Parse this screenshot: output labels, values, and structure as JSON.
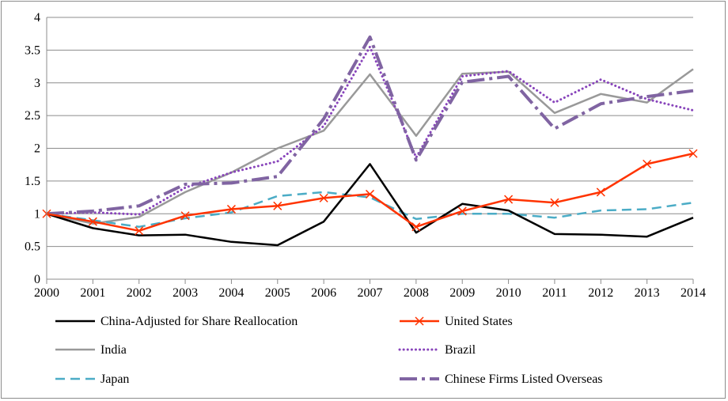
{
  "chart_data": {
    "type": "line",
    "title": "",
    "xlabel": "",
    "ylabel": "",
    "x": [
      "2000",
      "2001",
      "2002",
      "2003",
      "2004",
      "2005",
      "2006",
      "2007",
      "2008",
      "2009",
      "2010",
      "2011",
      "2012",
      "2013",
      "2014"
    ],
    "ylim": [
      0,
      4
    ],
    "yticks": [
      "0",
      "0.5",
      "1",
      "1.5",
      "2",
      "2.5",
      "3",
      "3.5",
      "4"
    ],
    "grid": true,
    "legend_position": "bottom",
    "series": [
      {
        "name": "China-Adjusted for Share Reallocation",
        "color": "#000000",
        "style": "solid",
        "values": [
          1.0,
          0.78,
          0.67,
          0.68,
          0.57,
          0.52,
          0.88,
          1.76,
          0.71,
          1.15,
          1.05,
          0.69,
          0.68,
          0.65,
          0.94
        ]
      },
      {
        "name": "United States",
        "color": "#ff3300",
        "style": "solid-x",
        "values": [
          1.0,
          0.88,
          0.74,
          0.97,
          1.07,
          1.12,
          1.24,
          1.3,
          0.8,
          1.04,
          1.22,
          1.17,
          1.33,
          1.76,
          1.92
        ]
      },
      {
        "name": "India",
        "color": "#999999",
        "style": "solid",
        "values": [
          1.0,
          0.85,
          0.95,
          1.33,
          1.63,
          2.0,
          2.27,
          3.13,
          2.19,
          3.14,
          3.17,
          2.54,
          2.83,
          2.7,
          3.21
        ]
      },
      {
        "name": "Brazil",
        "color": "#8844bb",
        "style": "dotted",
        "values": [
          1.0,
          1.02,
          0.99,
          1.4,
          1.63,
          1.8,
          2.34,
          3.55,
          1.86,
          3.1,
          3.18,
          2.7,
          3.05,
          2.75,
          2.58
        ]
      },
      {
        "name": "Japan",
        "color": "#4bacc6",
        "style": "dashed",
        "values": [
          1.0,
          0.9,
          0.8,
          0.93,
          1.02,
          1.27,
          1.33,
          1.25,
          0.92,
          1.0,
          1.0,
          0.94,
          1.05,
          1.07,
          1.17
        ]
      },
      {
        "name": "Chinese Firms Listed Overseas",
        "color": "#8064a2",
        "style": "dash-dot",
        "values": [
          1.0,
          1.04,
          1.12,
          1.45,
          1.47,
          1.57,
          2.45,
          3.7,
          1.82,
          3.01,
          3.1,
          2.3,
          2.68,
          2.79,
          2.88
        ]
      }
    ]
  }
}
